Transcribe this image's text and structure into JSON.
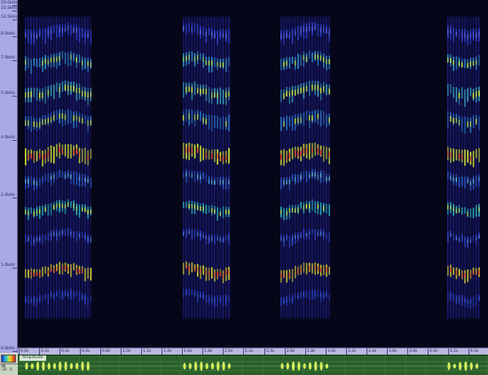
{
  "freq_axis": {
    "labels": [
      {
        "text": "20.0kHz",
        "pos": "top"
      },
      {
        "text": "15.5kHz",
        "pos": "a"
      },
      {
        "text": "12.5kHz",
        "pos": "b"
      },
      {
        "text": "8.0kHz",
        "pos": "c"
      },
      {
        "text": "7.0kHz",
        "pos": "d"
      },
      {
        "text": "5.0kHz",
        "pos": "e"
      },
      {
        "text": "4.0kHz",
        "pos": "f"
      },
      {
        "text": "2.0kHz",
        "pos": "g"
      },
      {
        "text": "1.0kHz",
        "pos": "h"
      },
      {
        "text": "0.0kHz",
        "pos": "bottom"
      }
    ]
  },
  "time_ruler": {
    "ticks": [
      "0.0s",
      "0.2s",
      "0.4s",
      "0.6s",
      "0.8s",
      "1.0s",
      "1.2s",
      "1.4s",
      "1.6s",
      "1.8s",
      "2.0s",
      "2.2s",
      "2.4s",
      "2.6s",
      "2.8s",
      "3.0s",
      "3.2s",
      "3.4s",
      "3.6s",
      "3.8s",
      "4.0s",
      "4.2s",
      "4.4s"
    ]
  },
  "waveform": {
    "tab_label": "Amplitude"
  },
  "controls": {
    "labels": [
      "dB",
      "-20",
      "0"
    ]
  },
  "colors": {
    "spectrogram_bg": "#060619",
    "axis_bg": "#a9a9e6",
    "waveform_bg": "#2a5f2a",
    "waveform_trace": "#e8ff60"
  }
}
